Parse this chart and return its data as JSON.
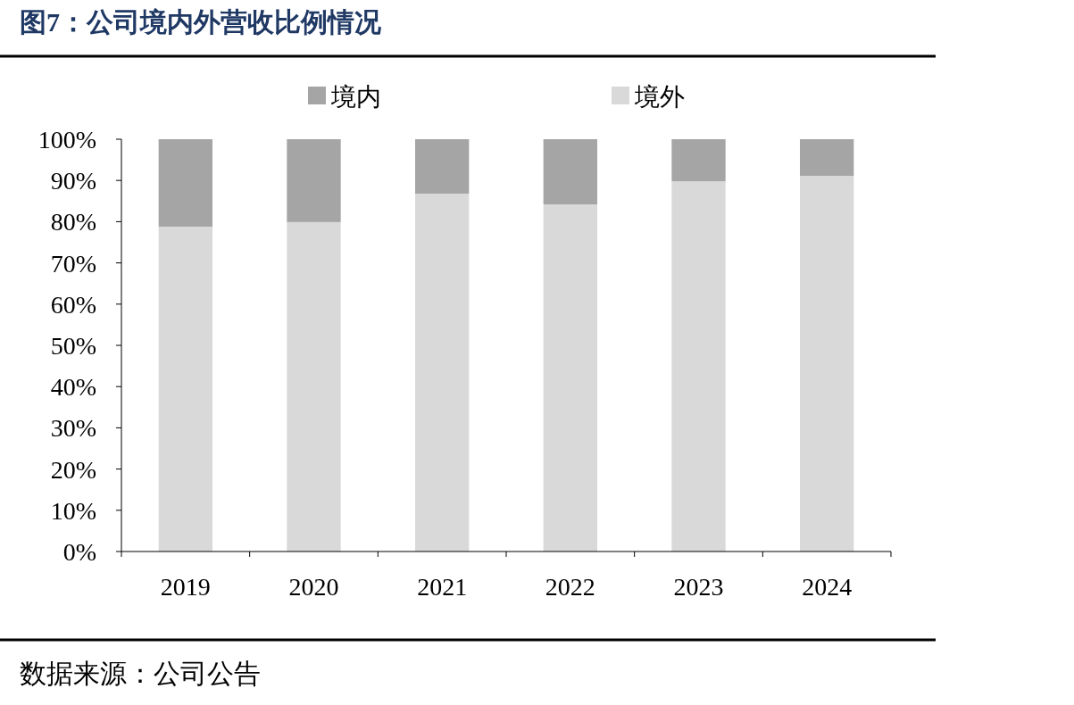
{
  "chart_data": {
    "type": "bar",
    "title": "图7：公司境内外营收比例情况",
    "categories": [
      "2019",
      "2020",
      "2021",
      "2022",
      "2023",
      "2024"
    ],
    "stacked": true,
    "series": [
      {
        "name": "境外",
        "color": "#d9d9d9",
        "values": [
          78.8,
          79.9,
          86.8,
          84.2,
          89.8,
          91.1
        ]
      },
      {
        "name": "境内",
        "color": "#a5a5a5",
        "values": [
          21.2,
          20.1,
          13.2,
          15.8,
          10.2,
          8.9
        ]
      }
    ],
    "ylim": [
      0,
      100
    ],
    "yticks": [
      {
        "value": 0,
        "label": "0%"
      },
      {
        "value": 10,
        "label": "10%"
      },
      {
        "value": 20,
        "label": "20%"
      },
      {
        "value": 30,
        "label": "30%"
      },
      {
        "value": 40,
        "label": "40%"
      },
      {
        "value": 50,
        "label": "50%"
      },
      {
        "value": 60,
        "label": "60%"
      },
      {
        "value": 70,
        "label": "70%"
      },
      {
        "value": 80,
        "label": "80%"
      },
      {
        "value": 90,
        "label": "90%"
      },
      {
        "value": 100,
        "label": "100%"
      }
    ],
    "legend": "top",
    "annotations": [
      "数据来源：公司公告"
    ]
  }
}
